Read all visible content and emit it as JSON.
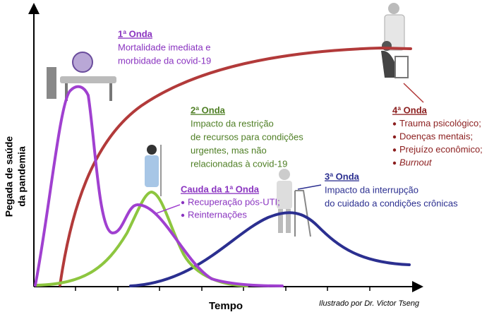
{
  "y_axis_label": [
    "Pegada de saúde",
    "da pandemia"
  ],
  "x_axis_label": "Tempo",
  "credit": "Ilustrado por Dr. Victor Tseng",
  "wave1": {
    "title": "1ª Onda",
    "lines": [
      "Mortalidade imediata e",
      "morbidade da covid-19"
    ]
  },
  "wave2": {
    "title": "2ª Onda",
    "lines": [
      "Impacto da restrição",
      "de recursos para condições",
      "urgentes, mas não",
      "relacionadas à covid-19"
    ]
  },
  "tail": {
    "title": "Cauda da 1ª Onda",
    "items": [
      "Recuperação pós-UTI;",
      "Reinternações"
    ]
  },
  "wave3": {
    "title": "3ª Onda",
    "lines": [
      "Impacto da interrupção",
      "do cuidado a condições crônicas"
    ]
  },
  "wave4": {
    "title": "4ª Onda",
    "items": [
      "Trauma psicológico;",
      "Doenças mentais;",
      "Prejuízo econômico;",
      "Burnout"
    ]
  }
}
